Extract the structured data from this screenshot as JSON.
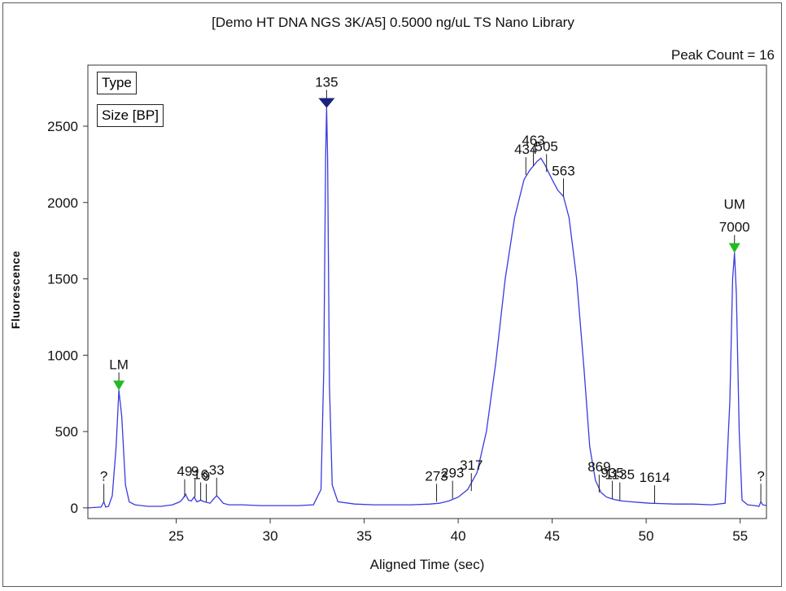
{
  "chart_data": {
    "type": "line",
    "title": "[Demo HT DNA NGS 3K/A5] 0.5000 ng/uL TS Nano Library",
    "peak_count_text": "Peak Count = 16",
    "xlabel": "Aligned Time (sec)",
    "ylabel": "Fluorescence",
    "xlim": [
      20.3,
      56.4
    ],
    "ylim": [
      -70,
      2900
    ],
    "x_ticks": [
      25,
      30,
      35,
      40,
      45,
      50,
      55
    ],
    "y_ticks": [
      0,
      500,
      1000,
      1500,
      2000,
      2500
    ],
    "legend": [
      "Type",
      "Size [BP]"
    ],
    "line_color": "#3a3ae0",
    "series": [
      {
        "x": [
          20.3,
          21.0,
          21.15,
          21.25,
          21.4,
          21.6,
          21.8,
          21.95,
          22.1,
          22.3,
          22.5,
          22.8,
          23.5,
          24.2,
          24.8,
          25.2,
          25.35,
          25.5,
          25.65,
          25.8,
          25.95,
          26.1,
          26.3,
          26.5,
          26.8,
          27.0,
          27.15,
          27.3,
          27.5,
          27.8,
          28.5,
          29.5,
          30.5,
          31.5,
          32.3,
          32.7,
          32.85,
          32.95,
          33.0,
          33.05,
          33.15,
          33.3,
          33.6,
          34.5,
          35.5,
          36.5,
          37.5,
          38.5,
          39.0,
          39.5,
          40.0,
          40.5,
          41.0,
          41.5,
          42.0,
          42.5,
          43.0,
          43.5,
          43.8,
          44.0,
          44.2,
          44.4,
          44.6,
          44.8,
          45.0,
          45.3,
          45.6,
          45.9,
          46.3,
          46.7,
          47.0,
          47.3,
          47.6,
          47.9,
          48.3,
          48.7,
          49.2,
          49.7,
          50.2,
          50.8,
          51.5,
          52.5,
          53.5,
          54.2,
          54.45,
          54.6,
          54.7,
          54.8,
          54.95,
          55.1,
          55.4,
          55.8,
          56.0,
          56.1,
          56.2,
          56.4
        ],
        "y": [
          0,
          5,
          40,
          5,
          10,
          80,
          400,
          770,
          600,
          150,
          40,
          20,
          10,
          10,
          20,
          40,
          60,
          90,
          50,
          45,
          70,
          40,
          50,
          40,
          30,
          60,
          80,
          60,
          30,
          20,
          20,
          15,
          15,
          15,
          20,
          120,
          900,
          2300,
          2620,
          2300,
          800,
          150,
          40,
          25,
          20,
          20,
          20,
          25,
          30,
          45,
          70,
          120,
          230,
          500,
          950,
          1500,
          1900,
          2150,
          2210,
          2240,
          2270,
          2290,
          2250,
          2200,
          2150,
          2080,
          2040,
          1900,
          1500,
          900,
          400,
          180,
          100,
          70,
          55,
          45,
          40,
          35,
          30,
          28,
          25,
          25,
          20,
          30,
          700,
          1500,
          1670,
          1400,
          500,
          50,
          20,
          15,
          10,
          40,
          20,
          15
        ]
      }
    ],
    "peaks": [
      {
        "x": 21.15,
        "y": 40,
        "label": "?"
      },
      {
        "x": 21.95,
        "y": 770,
        "label": "LM",
        "marker": "green"
      },
      {
        "x": 25.45,
        "y": 70,
        "label": "49"
      },
      {
        "x": 26.0,
        "y": 70,
        "label": "9"
      },
      {
        "x": 26.3,
        "y": 50,
        "label": "16"
      },
      {
        "x": 26.6,
        "y": 40,
        "label": "9"
      },
      {
        "x": 27.15,
        "y": 80,
        "label": "33"
      },
      {
        "x": 33.0,
        "y": 2620,
        "label": "135",
        "marker": "navy"
      },
      {
        "x": 38.85,
        "y": 40,
        "label": "273"
      },
      {
        "x": 39.7,
        "y": 60,
        "label": "293"
      },
      {
        "x": 40.7,
        "y": 110,
        "label": "317"
      },
      {
        "x": 43.6,
        "y": 2180,
        "label": "434"
      },
      {
        "x": 44.0,
        "y": 2240,
        "label": "463"
      },
      {
        "x": 44.7,
        "y": 2200,
        "label": "505"
      },
      {
        "x": 45.6,
        "y": 2040,
        "label": "563"
      },
      {
        "x": 47.5,
        "y": 100,
        "label": "869"
      },
      {
        "x": 48.2,
        "y": 60,
        "label": "935"
      },
      {
        "x": 48.6,
        "y": 50,
        "label": "1135"
      },
      {
        "x": 50.45,
        "y": 30,
        "label": "1614"
      },
      {
        "x": 54.7,
        "y": 1670,
        "label": "7000",
        "marker": "green",
        "sub_label": "UM"
      },
      {
        "x": 56.1,
        "y": 40,
        "label": "?"
      }
    ]
  }
}
